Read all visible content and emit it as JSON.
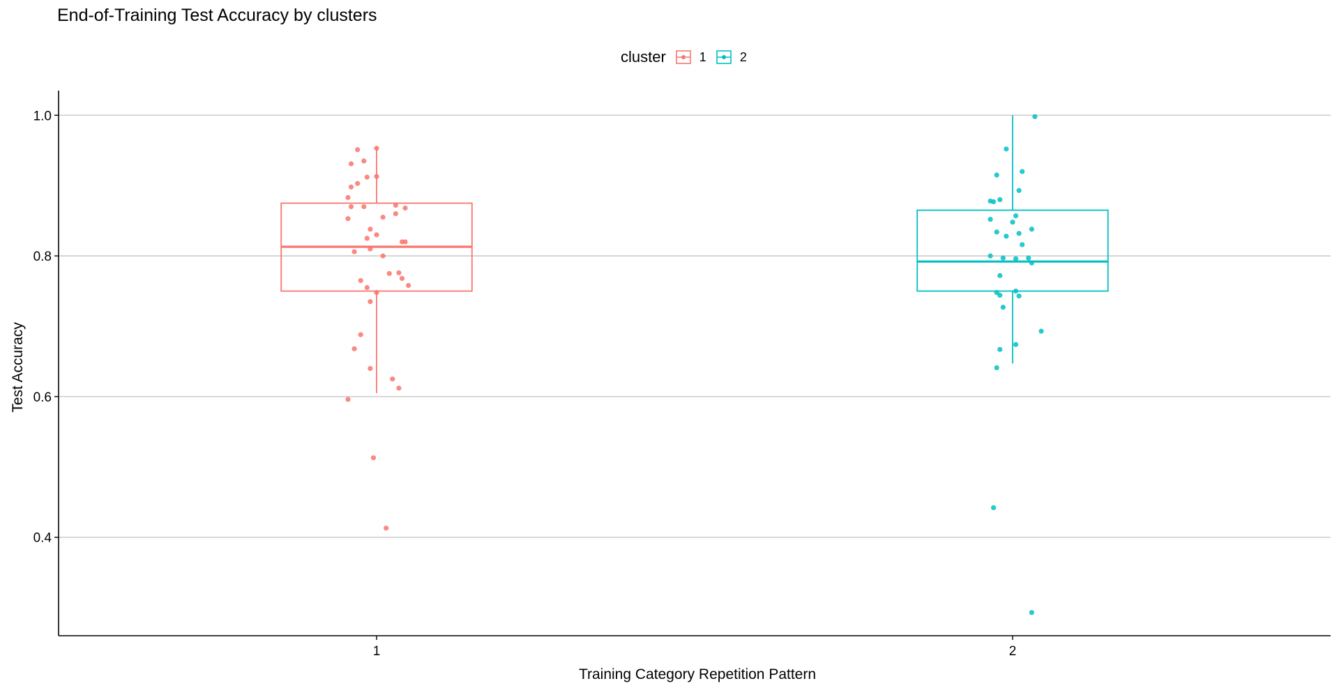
{
  "chart_data": {
    "type": "boxplot",
    "title": "End-of-Training Test Accuracy by clusters",
    "xlabel": "Training Category Repetition Pattern",
    "ylabel": "Test Accuracy",
    "categories": [
      "1",
      "2"
    ],
    "y_ticks": [
      "0.4",
      "0.6",
      "0.8",
      "1.0"
    ],
    "ylim": [
      0.26,
      1.035
    ],
    "grid": "horizontal-major",
    "legend": {
      "title": "cluster",
      "placement": "top",
      "entries": [
        {
          "label": "1",
          "color": "#F8766D"
        },
        {
          "label": "2",
          "color": "#00BFC4"
        }
      ]
    },
    "series": [
      {
        "category": "1",
        "color": "#F8766D",
        "box": {
          "lower_whisker": 0.605,
          "q1": 0.75,
          "median": 0.813,
          "q3": 0.875,
          "upper_whisker": 0.955
        },
        "points": [
          [
            -0.03,
            0.951
          ],
          [
            0.0,
            0.953
          ],
          [
            -0.02,
            0.935
          ],
          [
            -0.04,
            0.931
          ],
          [
            -0.015,
            0.912
          ],
          [
            0.0,
            0.913
          ],
          [
            -0.03,
            0.903
          ],
          [
            -0.04,
            0.898
          ],
          [
            -0.045,
            0.883
          ],
          [
            -0.04,
            0.87
          ],
          [
            -0.02,
            0.87
          ],
          [
            0.03,
            0.872
          ],
          [
            0.045,
            0.868
          ],
          [
            -0.045,
            0.853
          ],
          [
            0.01,
            0.855
          ],
          [
            0.03,
            0.86
          ],
          [
            -0.01,
            0.838
          ],
          [
            0.0,
            0.83
          ],
          [
            -0.015,
            0.825
          ],
          [
            0.04,
            0.82
          ],
          [
            0.045,
            0.82
          ],
          [
            -0.035,
            0.806
          ],
          [
            -0.01,
            0.81
          ],
          [
            0.01,
            0.8
          ],
          [
            0.02,
            0.775
          ],
          [
            0.035,
            0.776
          ],
          [
            -0.025,
            0.765
          ],
          [
            0.04,
            0.768
          ],
          [
            0.05,
            0.758
          ],
          [
            -0.015,
            0.755
          ],
          [
            0.0,
            0.748
          ],
          [
            -0.01,
            0.735
          ],
          [
            -0.025,
            0.688
          ],
          [
            -0.035,
            0.668
          ],
          [
            -0.01,
            0.64
          ],
          [
            0.025,
            0.625
          ],
          [
            0.035,
            0.612
          ],
          [
            -0.045,
            0.596
          ],
          [
            -0.005,
            0.513
          ],
          [
            0.015,
            0.413
          ]
        ]
      },
      {
        "category": "2",
        "color": "#00BFC4",
        "box": {
          "lower_whisker": 0.647,
          "q1": 0.75,
          "median": 0.792,
          "q3": 0.865,
          "upper_whisker": 1.0
        },
        "points": [
          [
            0.035,
            0.998
          ],
          [
            -0.01,
            0.952
          ],
          [
            0.015,
            0.92
          ],
          [
            -0.025,
            0.915
          ],
          [
            0.01,
            0.893
          ],
          [
            -0.035,
            0.878
          ],
          [
            -0.03,
            0.877
          ],
          [
            -0.02,
            0.88
          ],
          [
            0.005,
            0.857
          ],
          [
            -0.035,
            0.852
          ],
          [
            0.0,
            0.848
          ],
          [
            -0.025,
            0.834
          ],
          [
            0.03,
            0.838
          ],
          [
            -0.01,
            0.828
          ],
          [
            0.01,
            0.832
          ],
          [
            0.015,
            0.816
          ],
          [
            -0.035,
            0.8
          ],
          [
            -0.015,
            0.797
          ],
          [
            0.005,
            0.796
          ],
          [
            0.025,
            0.797
          ],
          [
            0.03,
            0.79
          ],
          [
            -0.02,
            0.772
          ],
          [
            0.005,
            0.75
          ],
          [
            -0.025,
            0.748
          ],
          [
            -0.02,
            0.744
          ],
          [
            0.01,
            0.743
          ],
          [
            -0.015,
            0.727
          ],
          [
            0.045,
            0.693
          ],
          [
            0.005,
            0.674
          ],
          [
            -0.02,
            0.667
          ],
          [
            -0.025,
            0.641
          ],
          [
            -0.03,
            0.442
          ],
          [
            0.03,
            0.293
          ]
        ]
      }
    ]
  }
}
